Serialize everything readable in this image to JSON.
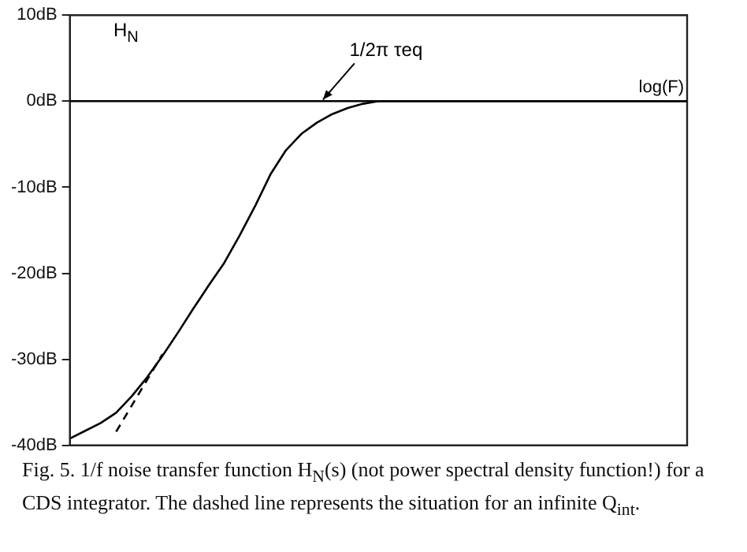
{
  "chart_data": {
    "type": "line",
    "ylabel": "H$_{N}$",
    "xlabel": "log(F)",
    "categories": [
      null,
      null,
      null,
      null,
      null,
      null,
      null,
      null,
      null,
      null,
      null,
      null,
      null,
      null,
      null,
      null,
      null,
      null,
      null,
      null,
      null,
      null,
      null,
      null,
      null,
      null,
      null,
      null,
      null,
      null,
      null,
      null,
      null,
      null,
      null,
      null,
      null,
      null,
      null,
      null,
      null
    ],
    "ylim": [
      -40,
      10
    ],
    "yticks": [
      {
        "value": 10,
        "label": "10dB"
      },
      {
        "value": 0,
        "label": "0dB"
      },
      {
        "value": -10,
        "label": "-10dB"
      },
      {
        "value": -20,
        "label": "-20dB"
      },
      {
        "value": -30,
        "label": "-30dB"
      },
      {
        "value": -40,
        "label": "-40dB"
      }
    ],
    "tick_labels": "y",
    "grid": false,
    "legend": false,
    "marker": "none",
    "series": [
      {
        "color": "#000000",
        "line_style": "solid",
        "values": [
          -39.2,
          -38.3,
          -37.4,
          -36.2,
          -34.3,
          -32.1,
          -29.6,
          -26.9,
          -24.1,
          -21.4,
          -18.8,
          -15.6,
          -12.2,
          -8.5,
          -5.7,
          -3.8,
          -2.5,
          -1.5,
          -0.8,
          -0.3,
          0,
          0,
          0,
          0,
          0,
          0,
          0,
          0,
          0,
          0,
          0,
          0,
          0,
          0,
          0,
          0,
          0,
          0,
          0,
          0,
          0
        ]
      },
      {
        "color": "#000000",
        "line_style": "dashed",
        "values": [
          null,
          null,
          null,
          -38.4,
          -35.4,
          -32.4,
          -29.4,
          null,
          null,
          null,
          null,
          null,
          null,
          null,
          null,
          null,
          null,
          null,
          null,
          null,
          null,
          null,
          null,
          null,
          null,
          null,
          null,
          null,
          null,
          null,
          null,
          null,
          null,
          null,
          null,
          null,
          null,
          null,
          null,
          null,
          null
        ]
      }
    ],
    "ref_lines": [
      {
        "axis": "y",
        "value": 0,
        "label": null,
        "color": "#000000"
      }
    ],
    "annotations": [
      {
        "text": "1/2π τeq",
        "y": 0
      },
      "Fig. 5. 1/f noise transfer function H$_{N}$(s) (not power spectral density function!) for a CDS integrator. The dashed line represents the situation for an infinite Q$_{int}$."
    ]
  }
}
